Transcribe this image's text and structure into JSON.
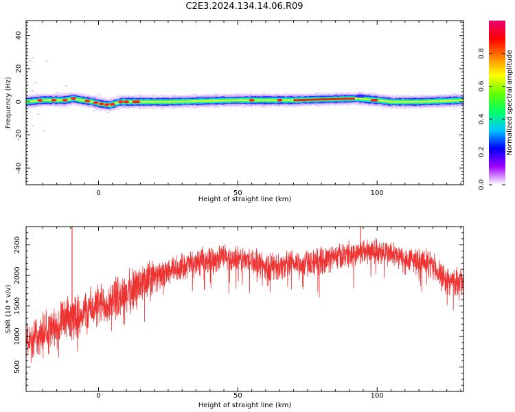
{
  "title": "C2E3.2024.134.14.06.R09",
  "chart_data": [
    {
      "type": "heatmap",
      "xlabel": "Height of straight line (km)",
      "ylabel": "Frequency (Hz)",
      "xlim": [
        -26,
        131
      ],
      "ylim": [
        -50,
        49
      ],
      "xticks": [
        0,
        50,
        100
      ],
      "yticks": [
        -40,
        -20,
        0,
        20,
        40
      ],
      "colorbar": {
        "label": "Normalized spectral amplitude",
        "range": [
          0,
          1
        ],
        "ticks": [
          0.0,
          0.2,
          0.4,
          0.6,
          0.8
        ],
        "colormap": [
          "#ffffff",
          "#a000ff",
          "#0000ff",
          "#00c8ff",
          "#00ff64",
          "#64ff00",
          "#ffff00",
          "#ff8000",
          "#ff0000",
          "#e6006e"
        ]
      },
      "ridge": [
        {
          "x": -26,
          "y": 0
        },
        {
          "x": -20,
          "y": 1
        },
        {
          "x": -12,
          "y": 1
        },
        {
          "x": -9,
          "y": 2
        },
        {
          "x": -6,
          "y": 1
        },
        {
          "x": -2,
          "y": 0
        },
        {
          "x": 0,
          "y": -1
        },
        {
          "x": 4,
          "y": -2
        },
        {
          "x": 8,
          "y": 0
        },
        {
          "x": 15,
          "y": 0
        },
        {
          "x": 25,
          "y": 0
        },
        {
          "x": 50,
          "y": 1
        },
        {
          "x": 70,
          "y": 1
        },
        {
          "x": 93,
          "y": 2
        },
        {
          "x": 100,
          "y": 1
        },
        {
          "x": 105,
          "y": 0
        },
        {
          "x": 115,
          "y": 0
        },
        {
          "x": 131,
          "y": 1
        }
      ]
    },
    {
      "type": "line",
      "color": "#ee3333",
      "xlabel": "Height of straight line (km)",
      "ylabel": "SNR (10 * v/v)",
      "xlim": [
        -26,
        131
      ],
      "ylim": [
        100,
        2800
      ],
      "xticks": [
        0,
        50,
        100
      ],
      "yticks": [
        500,
        1000,
        1500,
        2000,
        2500
      ],
      "trend": {
        "x": [
          -26,
          -20,
          -15,
          -10,
          -5,
          0,
          5,
          10,
          15,
          20,
          25,
          30,
          35,
          40,
          45,
          50,
          55,
          60,
          65,
          70,
          75,
          80,
          85,
          90,
          95,
          100,
          105,
          110,
          115,
          120,
          125,
          131
        ],
        "y": [
          900,
          1050,
          1150,
          1300,
          1400,
          1500,
          1600,
          1700,
          1850,
          1950,
          2050,
          2150,
          2200,
          2250,
          2300,
          2250,
          2250,
          2150,
          2150,
          2200,
          2200,
          2250,
          2300,
          2350,
          2400,
          2400,
          2350,
          2250,
          2250,
          2150,
          1900,
          1900
        ]
      },
      "spikes": [
        {
          "x": -9.5,
          "y": 2800
        },
        {
          "x": 94,
          "y": 2800
        }
      ]
    }
  ]
}
